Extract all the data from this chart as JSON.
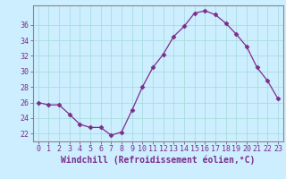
{
  "x": [
    0,
    1,
    2,
    3,
    4,
    5,
    6,
    7,
    8,
    9,
    10,
    11,
    12,
    13,
    14,
    15,
    16,
    17,
    18,
    19,
    20,
    21,
    22,
    23
  ],
  "y": [
    26.0,
    25.7,
    25.7,
    24.5,
    23.2,
    22.8,
    22.8,
    21.8,
    22.2,
    25.0,
    28.0,
    30.5,
    32.2,
    34.5,
    35.8,
    37.5,
    37.8,
    37.3,
    36.2,
    34.8,
    33.2,
    30.5,
    28.8,
    26.5
  ],
  "line_color": "#7b2d8b",
  "marker": "D",
  "marker_size": 2.5,
  "bg_color": "#cceeff",
  "grid_color": "#aadddd",
  "xlabel": "Windchill (Refroidissement éolien,°C)",
  "ylabel": "",
  "ylim": [
    21.0,
    38.5
  ],
  "xlim": [
    -0.5,
    23.5
  ],
  "yticks": [
    22,
    24,
    26,
    28,
    30,
    32,
    34,
    36
  ],
  "xticks": [
    0,
    1,
    2,
    3,
    4,
    5,
    6,
    7,
    8,
    9,
    10,
    11,
    12,
    13,
    14,
    15,
    16,
    17,
    18,
    19,
    20,
    21,
    22,
    23
  ],
  "label_color": "#7b2d8b",
  "tick_color": "#7b2d8b",
  "spine_color": "#888888",
  "axis_fontsize": 7,
  "tick_fontsize": 6
}
